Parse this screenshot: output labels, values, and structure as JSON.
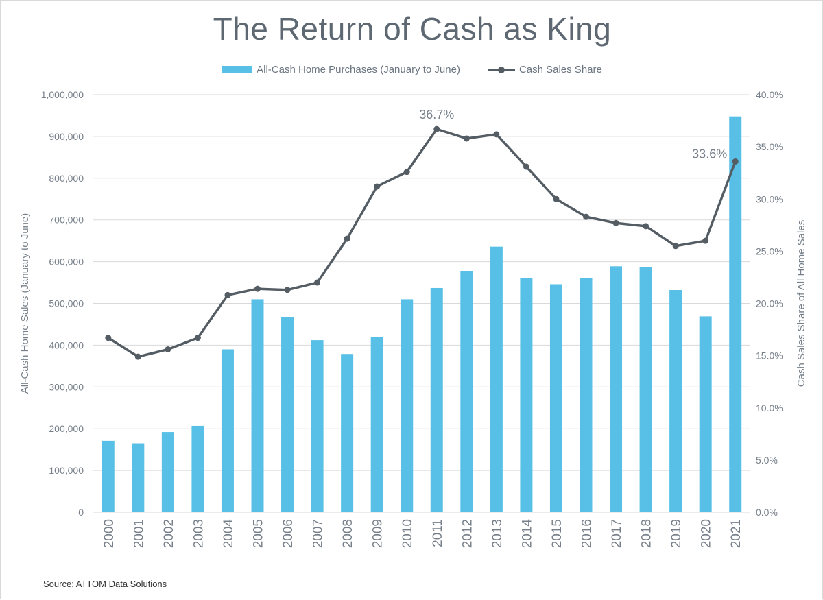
{
  "title": "The Return of Cash as King",
  "source": "Source: ATTOM Data Solutions",
  "colors": {
    "bar": "#58c0e6",
    "line": "#545c64",
    "grid": "#d9d9d9",
    "text": "#77808a"
  },
  "chart_data": {
    "type": "bar",
    "title": "The Return of Cash as King",
    "categories": [
      "2000",
      "2001",
      "2002",
      "2003",
      "2004",
      "2005",
      "2006",
      "2007",
      "2008",
      "2009",
      "2010",
      "2011",
      "2012",
      "2013",
      "2014",
      "2015",
      "2016",
      "2017",
      "2018",
      "2019",
      "2020",
      "2021"
    ],
    "series": [
      {
        "name": "All-Cash Home Purchases (January to June)",
        "type": "bar",
        "axis": "left",
        "values": [
          171000,
          165000,
          192000,
          207000,
          390000,
          510000,
          467000,
          412000,
          379000,
          419000,
          510000,
          537000,
          578000,
          636000,
          561000,
          546000,
          560000,
          589000,
          587000,
          532000,
          469000,
          948000
        ]
      },
      {
        "name": "Cash Sales Share",
        "type": "line",
        "axis": "right",
        "values": [
          16.7,
          14.9,
          15.6,
          16.7,
          20.8,
          21.4,
          21.3,
          22.0,
          26.2,
          31.2,
          32.6,
          36.7,
          35.8,
          36.2,
          33.1,
          30.0,
          28.3,
          27.7,
          27.4,
          25.5,
          26.0,
          33.6
        ]
      }
    ],
    "annotations": [
      {
        "category": "2011",
        "series": "Cash Sales Share",
        "text": "36.7%"
      },
      {
        "category": "2021",
        "series": "Cash Sales Share",
        "text": "33.6%"
      }
    ],
    "ylabel": "All-Cash Home Sales (January to June)",
    "y2label": "Cash Sales Share of All Home Sales",
    "ylim": [
      0,
      1000000
    ],
    "y2lim": [
      0,
      40
    ],
    "yticks": [
      "0",
      "100,000",
      "200,000",
      "300,000",
      "400,000",
      "500,000",
      "600,000",
      "700,000",
      "800,000",
      "900,000",
      "1,000,000"
    ],
    "y2ticks": [
      "0.0%",
      "5.0%",
      "10.0%",
      "15.0%",
      "20.0%",
      "25.0%",
      "30.0%",
      "35.0%",
      "40.0%"
    ],
    "grid": true,
    "legend": "top-center"
  }
}
